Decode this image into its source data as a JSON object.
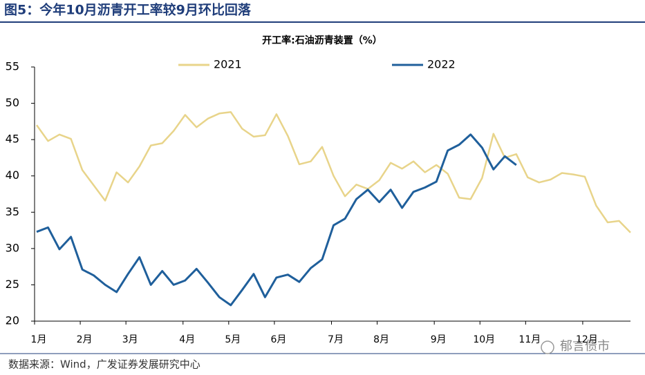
{
  "header": {
    "title": "图5：今年10月沥青开工率较9月环比回落"
  },
  "chart_data": {
    "type": "line",
    "title": "开工率:石油沥青装置（%）",
    "categories": [
      "1月",
      null,
      null,
      null,
      "2月",
      null,
      null,
      null,
      "3月",
      null,
      null,
      null,
      null,
      "4月",
      null,
      null,
      null,
      "5月",
      null,
      null,
      null,
      "6月",
      null,
      null,
      null,
      null,
      "7月",
      null,
      null,
      null,
      "8月",
      null,
      null,
      null,
      null,
      "9月",
      null,
      null,
      null,
      "10月",
      null,
      null,
      null,
      "11月",
      null,
      null,
      null,
      null,
      "12月",
      null,
      null,
      null,
      null
    ],
    "series": [
      {
        "name": "2021",
        "color": "#e8d48a",
        "values": [
          47.0,
          44.8,
          45.7,
          45.1,
          40.8,
          38.7,
          36.6,
          40.5,
          39.1,
          41.3,
          44.2,
          44.5,
          46.2,
          48.4,
          46.7,
          47.9,
          48.6,
          48.8,
          46.5,
          45.4,
          45.6,
          48.5,
          45.5,
          41.6,
          42.0,
          44.0,
          40.0,
          37.2,
          38.8,
          38.2,
          39.4,
          41.8,
          41.0,
          42.0,
          40.5,
          41.5,
          40.3,
          37.0,
          36.8,
          39.7,
          45.8,
          42.5,
          43.0,
          39.8,
          39.1,
          39.5,
          40.4,
          40.2,
          39.9,
          35.9,
          33.6,
          33.8,
          32.2
        ]
      },
      {
        "name": "2022",
        "color": "#1f5f9b",
        "values": [
          32.3,
          32.9,
          29.9,
          31.6,
          27.1,
          26.3,
          25.0,
          24.0,
          26.5,
          28.8,
          25.0,
          26.9,
          25.0,
          25.6,
          27.2,
          25.3,
          23.3,
          22.2,
          24.3,
          26.5,
          23.3,
          26.0,
          26.4,
          25.4,
          27.3,
          28.5,
          33.2,
          34.1,
          36.8,
          38.1,
          36.4,
          38.1,
          35.6,
          37.8,
          38.4,
          39.2,
          43.5,
          44.3,
          45.7,
          43.9,
          40.9,
          42.7,
          41.5,
          null,
          null,
          null,
          null,
          null,
          null,
          null,
          null,
          null,
          null
        ]
      }
    ],
    "ylim": [
      20,
      55
    ],
    "yticks": [
      20,
      25,
      30,
      35,
      40,
      45,
      50,
      55
    ],
    "grid": false,
    "legend": "top"
  },
  "footer": {
    "source": "数据来源：Wind，广发证券发展研究中心",
    "watermark": "郁言债市"
  }
}
